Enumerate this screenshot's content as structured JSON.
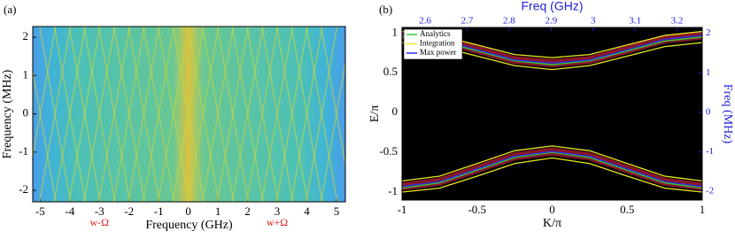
{
  "chart_data": [
    {
      "type": "spectrogram",
      "label": "(a)",
      "xlabel": "Frequency (GHz)",
      "ylabel": "Frequency (MHz)",
      "xlim": [
        -5.25,
        5.3
      ],
      "xticks": [
        -5,
        -4,
        -3,
        -2,
        -1,
        0,
        1,
        2,
        3,
        4,
        5
      ],
      "ylim": [
        -2.3,
        2.28
      ],
      "yticks": [
        -2,
        -1,
        0,
        1,
        2
      ],
      "annotations": [
        {
          "text": "w-Ω",
          "x": -3,
          "color": "#d62020"
        },
        {
          "text": "w+Ω",
          "x": 3,
          "color": "#d62020"
        }
      ]
    },
    {
      "type": "line",
      "label": "(b)",
      "xlabel": "K/π",
      "ylabel": "E/π",
      "x2label": "Freq (GHz)",
      "y2label": "Freq (MHz)",
      "axis2_color": "#1f1fdd",
      "x": [
        -1,
        -0.75,
        -0.5,
        -0.25,
        0,
        0.25,
        0.5,
        0.75,
        1
      ],
      "xlim": [
        -1,
        1
      ],
      "xticks": [
        -1,
        -0.5,
        0,
        0.5,
        1
      ],
      "ylim": [
        -1.1,
        1.07
      ],
      "yticks": [
        -1,
        -0.5,
        0,
        0.5,
        1
      ],
      "x2lim": [
        2.545,
        3.26
      ],
      "x2ticks": [
        2.6,
        2.7,
        2.8,
        2.9,
        3,
        3.1,
        3.2
      ],
      "y2lim": [
        -2.22,
        2.15
      ],
      "y2ticks": [
        -2,
        -1,
        0,
        1,
        2
      ],
      "series": [
        {
          "name": "Analytics",
          "color": "#33cc33",
          "lines": [
            [
              0.95,
              0.899,
              0.775,
              0.651,
              0.6,
              0.651,
              0.775,
              0.899,
              0.95
            ],
            [
              -0.95,
              -0.884,
              -0.725,
              -0.566,
              -0.5,
              -0.566,
              -0.725,
              -0.884,
              -0.95
            ]
          ]
        },
        {
          "name": "Integration",
          "color": "#e8e820",
          "lines": [
            [
              1.02,
              0.97,
              0.85,
              0.73,
              0.69,
              0.73,
              0.85,
              0.97,
              1.02
            ],
            [
              0.88,
              0.83,
              0.71,
              0.59,
              0.54,
              0.59,
              0.71,
              0.83,
              0.88
            ],
            [
              -0.86,
              -0.8,
              -0.64,
              -0.48,
              -0.42,
              -0.48,
              -0.64,
              -0.8,
              -0.86
            ],
            [
              -1.0,
              -0.95,
              -0.8,
              -0.64,
              -0.57,
              -0.64,
              -0.8,
              -0.95,
              -1.0
            ]
          ]
        },
        {
          "name": "Max power",
          "color": "#2233ee",
          "lines": [
            [
              0.97,
              0.92,
              0.79,
              0.66,
              0.62,
              0.66,
              0.79,
              0.92,
              0.97
            ],
            [
              -0.93,
              -0.87,
              -0.71,
              -0.55,
              -0.49,
              -0.55,
              -0.71,
              -0.87,
              -0.93
            ]
          ]
        }
      ]
    }
  ]
}
